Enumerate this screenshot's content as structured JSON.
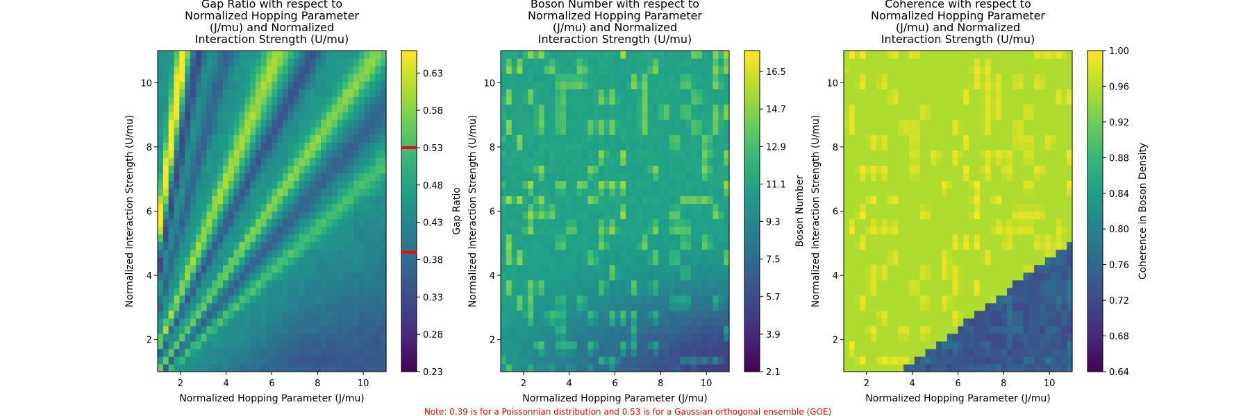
{
  "note": "Note: 0.39 is for a Poissonnian distribution and 0.53 is for a Gaussian orthogonal ensemble (GOE)",
  "chart_data": [
    {
      "type": "heatmap",
      "title_lines": [
        "Gap Ratio with respect to",
        "Normalized Hopping Parameter",
        "(J/mu) and Normalized",
        "Interaction Strength (U/mu)"
      ],
      "xlabel": "Normalized Hopping Parameter (J/mu)",
      "ylabel": "Normalized Interaction Strength (U/mu)",
      "xlim": [
        1,
        11
      ],
      "ylim": [
        1,
        11
      ],
      "xticks": [
        "2",
        "4",
        "6",
        "8",
        "10"
      ],
      "yticks": [
        "2",
        "4",
        "6",
        "8",
        "10"
      ],
      "colorbar_label": "Gap Ratio",
      "colorbar_range": [
        0.23,
        0.66
      ],
      "colorbar_ticks": [
        "0.23",
        "0.28",
        "0.33",
        "0.38",
        "0.43",
        "0.48",
        "0.53",
        "0.58",
        "0.63"
      ],
      "reference_lines": [
        0.39,
        0.53
      ],
      "reference_color": "#ff0000",
      "colormap": "viridis"
    },
    {
      "type": "heatmap",
      "title_lines": [
        "Boson Number with respect to",
        "Normalized Hopping Parameter",
        "(J/mu) and Normalized",
        "Interaction Strength (U/mu)"
      ],
      "xlabel": "Normalized Hopping Parameter (J/mu)",
      "ylabel": "Normalized Interaction Strength (U/mu)",
      "xlim": [
        1,
        11
      ],
      "ylim": [
        1,
        11
      ],
      "xticks": [
        "2",
        "4",
        "6",
        "8",
        "10"
      ],
      "yticks": [
        "2",
        "4",
        "6",
        "8",
        "10"
      ],
      "colorbar_label": "Boson Number",
      "colorbar_range": [
        2.1,
        17.5
      ],
      "colorbar_ticks": [
        "2.1",
        "3.9",
        "5.7",
        "7.5",
        "9.3",
        "11.1",
        "12.9",
        "14.7",
        "16.5"
      ],
      "colormap": "viridis"
    },
    {
      "type": "heatmap",
      "title_lines": [
        "Coherence with respect to",
        "Normalized Hopping Parameter",
        "(J/mu) and Normalized",
        "Interaction Strength (U/mu)"
      ],
      "xlabel": "Normalized Hopping Parameter (J/mu)",
      "ylabel": "Normalized Interaction Strength (U/mu)",
      "xlim": [
        1,
        11
      ],
      "ylim": [
        1,
        11
      ],
      "xticks": [
        "2",
        "4",
        "6",
        "8",
        "10"
      ],
      "yticks": [
        "2",
        "4",
        "6",
        "8",
        "10"
      ],
      "colorbar_label": "Coherence in Boson Density",
      "colorbar_range": [
        0.64,
        1.0
      ],
      "colorbar_ticks": [
        "0.64",
        "0.68",
        "0.72",
        "0.76",
        "0.80",
        "0.84",
        "0.88",
        "0.92",
        "0.96",
        "1.00"
      ],
      "colormap": "viridis"
    }
  ]
}
